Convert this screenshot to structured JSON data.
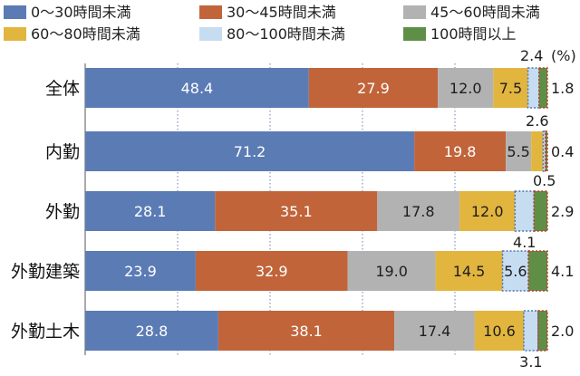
{
  "chart_data": {
    "type": "bar",
    "orientation": "horizontal",
    "stacked": true,
    "unit_label": "(%)",
    "categories": [
      "全体",
      "内勤",
      "外勤",
      "外勤建築",
      "外勤土木"
    ],
    "series": [
      {
        "name": "0～30時間未満",
        "color": "#5b7bb5",
        "values": [
          48.4,
          71.2,
          28.1,
          23.9,
          28.8
        ]
      },
      {
        "name": "30～45時間未満",
        "color": "#c1643a",
        "values": [
          27.9,
          19.8,
          35.1,
          32.9,
          38.1
        ]
      },
      {
        "name": "45～60時間未満",
        "color": "#b2b2b2",
        "values": [
          12.0,
          5.5,
          17.8,
          19.0,
          17.4
        ]
      },
      {
        "name": "60～80時間未満",
        "color": "#e2b53e",
        "values": [
          7.5,
          2.6,
          12.0,
          14.5,
          10.6
        ]
      },
      {
        "name": "80～100時間未満",
        "color": "#c6dcf1",
        "values": [
          2.4,
          0.5,
          4.1,
          5.6,
          3.1
        ]
      },
      {
        "name": "100時間以上",
        "color": "#5f8f46",
        "values": [
          1.8,
          0.4,
          2.9,
          4.1,
          2.0
        ]
      }
    ],
    "labels": [
      [
        "48.4",
        "27.9",
        "12.0",
        "7.5",
        "2.4",
        "1.8"
      ],
      [
        "71.2",
        "19.8",
        "5.5",
        "2.6",
        "0.5",
        "0.4"
      ],
      [
        "28.1",
        "35.1",
        "17.8",
        "12.0",
        "4.1",
        "2.9"
      ],
      [
        "23.9",
        "32.9",
        "19.0",
        "14.5",
        "5.6",
        "4.1"
      ],
      [
        "28.8",
        "38.1",
        "17.4",
        "10.6",
        "3.1",
        "2.0"
      ]
    ],
    "xlim": [
      0,
      100
    ],
    "grid": true,
    "legend_placement": "top"
  }
}
